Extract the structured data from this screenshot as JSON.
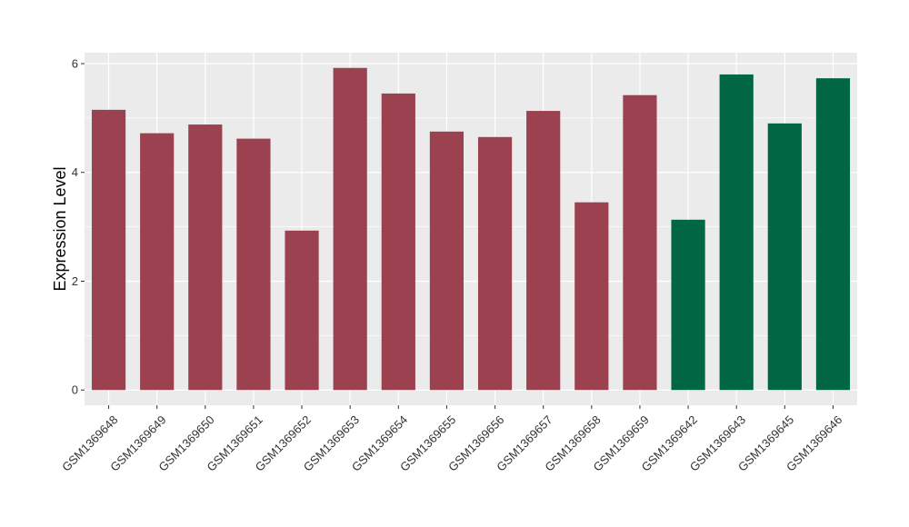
{
  "chart_data": {
    "type": "bar",
    "ylabel": "Expression Level",
    "xlabel": "",
    "ylim": [
      -0.28,
      6.2
    ],
    "yticks": [
      0,
      2,
      4,
      6
    ],
    "grid": true,
    "categories": [
      "GSM1369648",
      "GSM1369649",
      "GSM1369650",
      "GSM1369651",
      "GSM1369652",
      "GSM1369653",
      "GSM1369654",
      "GSM1369655",
      "GSM1369656",
      "GSM1369657",
      "GSM1369658",
      "GSM1369659",
      "GSM1369642",
      "GSM1369643",
      "GSM1369645",
      "GSM1369646"
    ],
    "values": [
      5.15,
      4.72,
      4.88,
      4.62,
      2.93,
      5.92,
      5.45,
      4.75,
      4.65,
      5.13,
      3.45,
      5.42,
      3.13,
      5.8,
      4.9,
      5.73
    ],
    "groups": [
      "a",
      "a",
      "a",
      "a",
      "a",
      "a",
      "a",
      "a",
      "a",
      "a",
      "a",
      "a",
      "b",
      "b",
      "b",
      "b"
    ],
    "colors": {
      "a": "#9b4150",
      "b": "#006644"
    },
    "panel_bg": "#ebebeb",
    "grid_color": "#ffffff"
  }
}
